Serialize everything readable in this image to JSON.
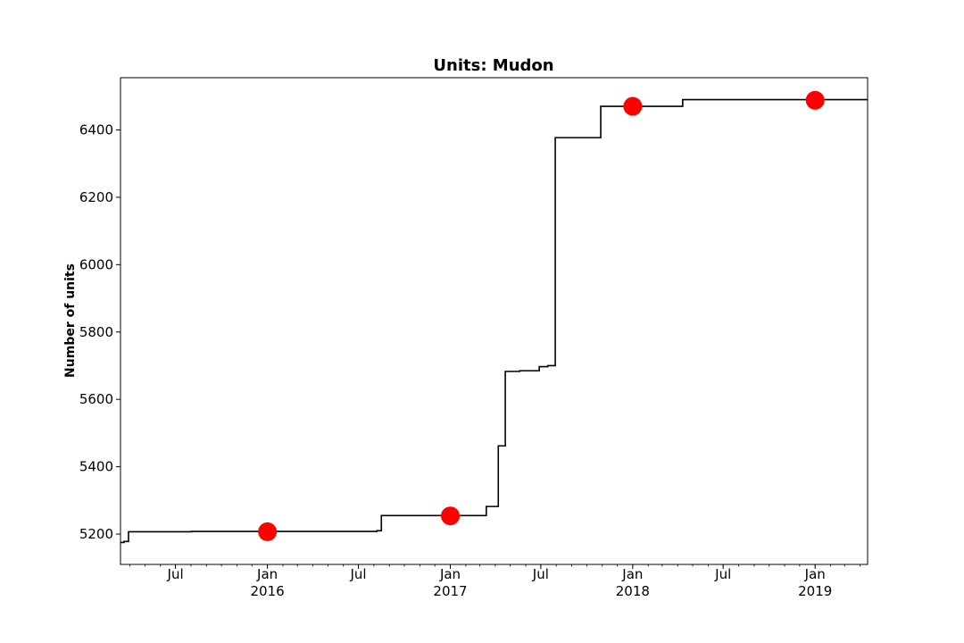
{
  "chart_data": {
    "type": "line",
    "title": "Units: Mudon",
    "xlabel": "",
    "ylabel": "Number of units",
    "x_range": [
      "2015-03-13",
      "2019-04-16"
    ],
    "ylim": [
      5110,
      6555
    ],
    "yticks": [
      5200,
      5400,
      5600,
      5800,
      6000,
      6200,
      6400
    ],
    "xticks": [
      {
        "date": "2015-07-01",
        "label": "Jul"
      },
      {
        "date": "2016-01-01",
        "label": "Jan",
        "year": "2016"
      },
      {
        "date": "2016-07-01",
        "label": "Jul"
      },
      {
        "date": "2017-01-01",
        "label": "Jan",
        "year": "2017"
      },
      {
        "date": "2017-07-01",
        "label": "Jul"
      },
      {
        "date": "2018-01-01",
        "label": "Jan",
        "year": "2018"
      },
      {
        "date": "2018-07-01",
        "label": "Jul"
      },
      {
        "date": "2019-01-01",
        "label": "Jan",
        "year": "2019"
      }
    ],
    "series": [
      {
        "style": "step",
        "color": "#000000",
        "points": [
          [
            "2015-03-13",
            5175
          ],
          [
            "2015-03-20",
            5178
          ],
          [
            "2015-03-29",
            5207
          ],
          [
            "2015-08-02",
            5208
          ],
          [
            "2016-08-07",
            5210
          ],
          [
            "2016-08-16",
            5255
          ],
          [
            "2017-03-14",
            5282
          ],
          [
            "2017-04-07",
            5462
          ],
          [
            "2017-04-21",
            5683
          ],
          [
            "2017-05-20",
            5685
          ],
          [
            "2017-06-28",
            5697
          ],
          [
            "2017-07-15",
            5700
          ],
          [
            "2017-07-30",
            6377
          ],
          [
            "2017-10-29",
            6470
          ],
          [
            "2018-04-11",
            6490
          ],
          [
            "2019-04-16",
            6490
          ]
        ]
      },
      {
        "style": "markers",
        "color": "#ff0000",
        "points": [
          [
            "2016-01-01",
            5207
          ],
          [
            "2017-01-01",
            5254
          ],
          [
            "2018-01-01",
            6470
          ],
          [
            "2019-01-01",
            6488
          ]
        ]
      }
    ]
  }
}
